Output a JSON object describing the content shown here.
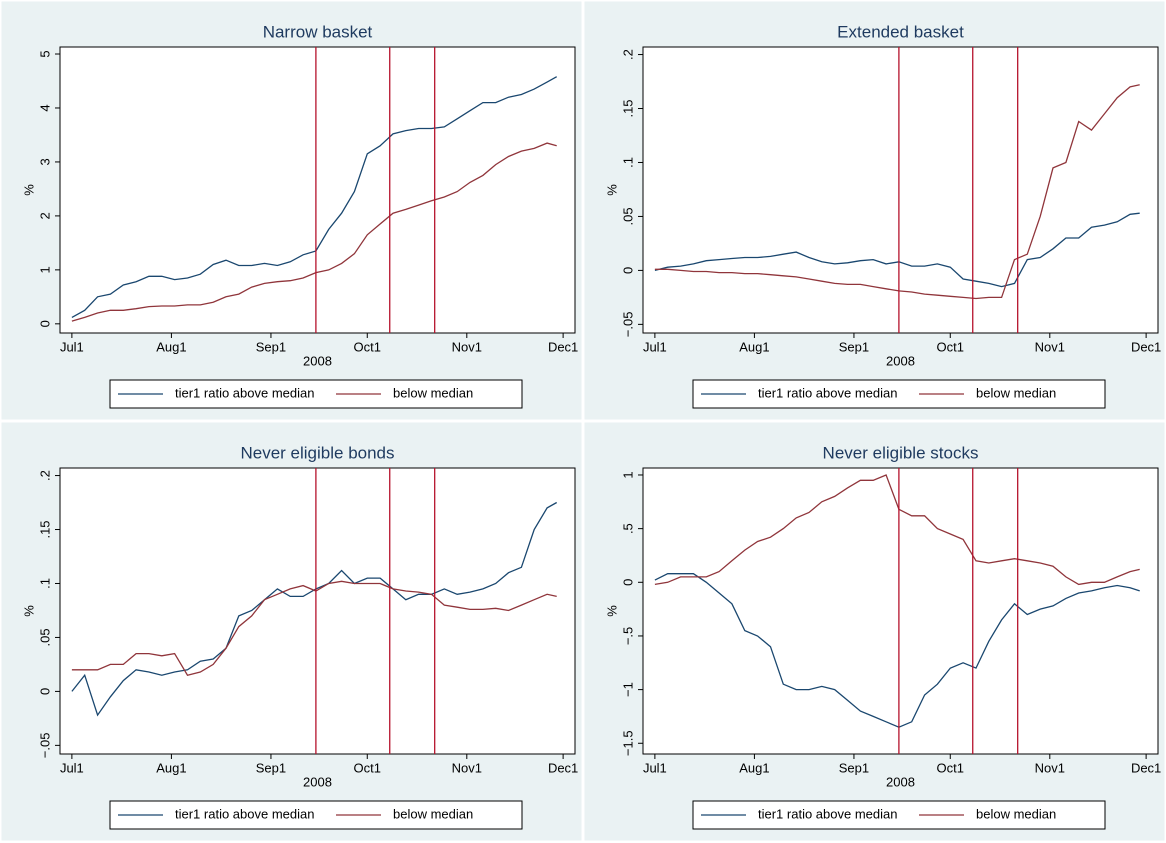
{
  "chart_data": [
    {
      "type": "line",
      "title": "Narrow basket",
      "x_label": "2008",
      "y_label": "%",
      "x": [
        0,
        4,
        8,
        12,
        16,
        20,
        24,
        28,
        32,
        36,
        40,
        44,
        48,
        52,
        56,
        60,
        64,
        68,
        72,
        76,
        80,
        84,
        88,
        92,
        96,
        100,
        104,
        108,
        112,
        116,
        120,
        124,
        128,
        132,
        136,
        140,
        144,
        148,
        151
      ],
      "xlim": [
        -3.7,
        156.7
      ],
      "xticks": [
        {
          "value": 0,
          "label": "Jul1"
        },
        {
          "value": 31,
          "label": "Aug1"
        },
        {
          "value": 62,
          "label": "Sep1"
        },
        {
          "value": 92,
          "label": "Oct1"
        },
        {
          "value": 123,
          "label": "Nov1"
        },
        {
          "value": 153,
          "label": "Dec1"
        }
      ],
      "ylim": [
        -0.17,
        5.13
      ],
      "yticks": [
        0,
        1,
        2,
        3,
        4,
        5
      ],
      "vlines": [
        76,
        99,
        113
      ],
      "vline_color": "#b5122c",
      "legend": "bottom",
      "series": [
        {
          "name": "tier1 ratio above median",
          "color": "#1a476f",
          "values": [
            0.12,
            0.25,
            0.5,
            0.55,
            0.72,
            0.78,
            0.88,
            0.88,
            0.82,
            0.85,
            0.92,
            1.1,
            1.18,
            1.08,
            1.08,
            1.12,
            1.08,
            1.15,
            1.28,
            1.35,
            1.75,
            2.05,
            2.45,
            3.15,
            3.3,
            3.52,
            3.58,
            3.62,
            3.62,
            3.65,
            3.8,
            3.95,
            4.1,
            4.1,
            4.2,
            4.25,
            4.35,
            4.48,
            4.58
          ]
        },
        {
          "name": "below median",
          "color": "#90353b",
          "values": [
            0.05,
            0.12,
            0.2,
            0.25,
            0.25,
            0.28,
            0.32,
            0.33,
            0.33,
            0.35,
            0.35,
            0.4,
            0.5,
            0.55,
            0.68,
            0.75,
            0.78,
            0.8,
            0.85,
            0.95,
            1.0,
            1.12,
            1.3,
            1.65,
            1.85,
            2.05,
            2.12,
            2.2,
            2.28,
            2.35,
            2.45,
            2.62,
            2.75,
            2.95,
            3.1,
            3.2,
            3.25,
            3.35,
            3.3
          ]
        }
      ]
    },
    {
      "type": "line",
      "title": "Extended basket",
      "x_label": "2008",
      "y_label": "%",
      "x": [
        0,
        4,
        8,
        12,
        16,
        20,
        24,
        28,
        32,
        36,
        40,
        44,
        48,
        52,
        56,
        60,
        64,
        68,
        72,
        76,
        80,
        84,
        88,
        92,
        96,
        100,
        104,
        108,
        112,
        116,
        120,
        124,
        128,
        132,
        136,
        140,
        144,
        148,
        151
      ],
      "xlim": [
        -3.7,
        156.7
      ],
      "xticks": [
        {
          "value": 0,
          "label": "Jul1"
        },
        {
          "value": 31,
          "label": "Aug1"
        },
        {
          "value": 62,
          "label": "Sep1"
        },
        {
          "value": 92,
          "label": "Oct1"
        },
        {
          "value": 123,
          "label": "Nov1"
        },
        {
          "value": 153,
          "label": "Dec1"
        }
      ],
      "ylim": [
        -0.058,
        0.207
      ],
      "yticks": [
        {
          "value": -0.05,
          "label": "−.05"
        },
        0,
        {
          "value": 0.05,
          "label": ".05"
        },
        {
          "value": 0.1,
          "label": ".1"
        },
        {
          "value": 0.15,
          "label": ".15"
        },
        {
          "value": 0.2,
          "label": ".2"
        }
      ],
      "vlines": [
        76,
        99,
        113
      ],
      "vline_color": "#b5122c",
      "legend": "bottom",
      "series": [
        {
          "name": "tier1 ratio above median",
          "color": "#1a476f",
          "values": [
            0,
            0.003,
            0.004,
            0.006,
            0.009,
            0.01,
            0.011,
            0.012,
            0.012,
            0.013,
            0.015,
            0.017,
            0.012,
            0.008,
            0.006,
            0.007,
            0.009,
            0.01,
            0.006,
            0.008,
            0.004,
            0.004,
            0.006,
            0.003,
            -0.008,
            -0.01,
            -0.012,
            -0.015,
            -0.012,
            0.01,
            0.012,
            0.02,
            0.03,
            0.03,
            0.04,
            0.042,
            0.045,
            0.052,
            0.053
          ]
        },
        {
          "name": "below median",
          "color": "#90353b",
          "values": [
            0.001,
            0.001,
            0,
            -0.001,
            -0.001,
            -0.002,
            -0.002,
            -0.003,
            -0.003,
            -0.004,
            -0.005,
            -0.006,
            -0.008,
            -0.01,
            -0.012,
            -0.013,
            -0.013,
            -0.015,
            -0.017,
            -0.019,
            -0.02,
            -0.022,
            -0.023,
            -0.024,
            -0.025,
            -0.026,
            -0.025,
            -0.025,
            0.01,
            0.015,
            0.05,
            0.095,
            0.1,
            0.138,
            0.13,
            0.145,
            0.16,
            0.17,
            0.172
          ]
        }
      ]
    },
    {
      "type": "line",
      "title": "Never eligible bonds",
      "x_label": "2008",
      "y_label": "%",
      "x": [
        0,
        4,
        8,
        12,
        16,
        20,
        24,
        28,
        32,
        36,
        40,
        44,
        48,
        52,
        56,
        60,
        64,
        68,
        72,
        76,
        80,
        84,
        88,
        92,
        96,
        100,
        104,
        108,
        112,
        116,
        120,
        124,
        128,
        132,
        136,
        140,
        144,
        148,
        151
      ],
      "xlim": [
        -3.7,
        156.7
      ],
      "xticks": [
        {
          "value": 0,
          "label": "Jul1"
        },
        {
          "value": 31,
          "label": "Aug1"
        },
        {
          "value": 62,
          "label": "Sep1"
        },
        {
          "value": 92,
          "label": "Oct1"
        },
        {
          "value": 123,
          "label": "Nov1"
        },
        {
          "value": 153,
          "label": "Dec1"
        }
      ],
      "ylim": [
        -0.058,
        0.207
      ],
      "yticks": [
        {
          "value": -0.05,
          "label": "−.05"
        },
        0,
        {
          "value": 0.05,
          "label": ".05"
        },
        {
          "value": 0.1,
          "label": ".1"
        },
        {
          "value": 0.15,
          "label": ".15"
        },
        {
          "value": 0.2,
          "label": ".2"
        }
      ],
      "vlines": [
        76,
        99,
        113
      ],
      "vline_color": "#b5122c",
      "legend": "bottom",
      "series": [
        {
          "name": "tier1 ratio above median",
          "color": "#1a476f",
          "values": [
            0,
            0.015,
            -0.022,
            -0.005,
            0.01,
            0.02,
            0.018,
            0.015,
            0.018,
            0.02,
            0.028,
            0.03,
            0.04,
            0.07,
            0.075,
            0.085,
            0.095,
            0.088,
            0.088,
            0.095,
            0.1,
            0.112,
            0.1,
            0.105,
            0.105,
            0.095,
            0.085,
            0.09,
            0.09,
            0.095,
            0.09,
            0.092,
            0.095,
            0.1,
            0.11,
            0.115,
            0.15,
            0.17,
            0.175
          ]
        },
        {
          "name": "below median",
          "color": "#90353b",
          "values": [
            0.02,
            0.02,
            0.02,
            0.025,
            0.025,
            0.035,
            0.035,
            0.033,
            0.035,
            0.015,
            0.018,
            0.025,
            0.04,
            0.06,
            0.07,
            0.085,
            0.09,
            0.095,
            0.098,
            0.093,
            0.1,
            0.102,
            0.1,
            0.1,
            0.1,
            0.095,
            0.093,
            0.092,
            0.09,
            0.08,
            0.078,
            0.076,
            0.076,
            0.077,
            0.075,
            0.08,
            0.085,
            0.09,
            0.088
          ]
        }
      ]
    },
    {
      "type": "line",
      "title": "Never eligible stocks",
      "x_label": "2008",
      "y_label": "%",
      "x": [
        0,
        4,
        8,
        12,
        16,
        20,
        24,
        28,
        32,
        36,
        40,
        44,
        48,
        52,
        56,
        60,
        64,
        68,
        72,
        76,
        80,
        84,
        88,
        92,
        96,
        100,
        104,
        108,
        112,
        116,
        120,
        124,
        128,
        132,
        136,
        140,
        144,
        148,
        151
      ],
      "xlim": [
        -3.7,
        156.7
      ],
      "xticks": [
        {
          "value": 0,
          "label": "Jul1"
        },
        {
          "value": 31,
          "label": "Aug1"
        },
        {
          "value": 62,
          "label": "Sep1"
        },
        {
          "value": 92,
          "label": "Oct1"
        },
        {
          "value": 123,
          "label": "Nov1"
        },
        {
          "value": 153,
          "label": "Dec1"
        }
      ],
      "ylim": [
        -1.6,
        1.065
      ],
      "yticks": [
        {
          "value": -1.5,
          "label": "−1.5"
        },
        {
          "value": -1,
          "label": "−1"
        },
        {
          "value": -0.5,
          "label": "−.5"
        },
        0,
        {
          "value": 0.5,
          "label": ".5"
        },
        1
      ],
      "vlines": [
        76,
        99,
        113
      ],
      "vline_color": "#b5122c",
      "legend": "bottom",
      "series": [
        {
          "name": "tier1 ratio above median",
          "color": "#1a476f",
          "values": [
            0.02,
            0.08,
            0.08,
            0.08,
            0,
            -0.1,
            -0.2,
            -0.45,
            -0.5,
            -0.6,
            -0.95,
            -1,
            -1.0,
            -0.97,
            -1.0,
            -1.1,
            -1.2,
            -1.25,
            -1.3,
            -1.35,
            -1.3,
            -1.05,
            -0.95,
            -0.8,
            -0.75,
            -0.8,
            -0.55,
            -0.35,
            -0.2,
            -0.3,
            -0.25,
            -0.22,
            -0.15,
            -0.1,
            -0.08,
            -0.05,
            -0.03,
            -0.05,
            -0.08
          ]
        },
        {
          "name": "below median",
          "color": "#90353b",
          "values": [
            -0.02,
            0,
            0.05,
            0.05,
            0.05,
            0.1,
            0.2,
            0.3,
            0.38,
            0.42,
            0.5,
            0.6,
            0.65,
            0.75,
            0.8,
            0.88,
            0.95,
            0.95,
            1.0,
            0.68,
            0.62,
            0.62,
            0.5,
            0.45,
            0.4,
            0.2,
            0.18,
            0.2,
            0.22,
            0.2,
            0.18,
            0.15,
            0.05,
            -0.02,
            0,
            0,
            0.05,
            0.1,
            0.12
          ]
        }
      ]
    }
  ]
}
